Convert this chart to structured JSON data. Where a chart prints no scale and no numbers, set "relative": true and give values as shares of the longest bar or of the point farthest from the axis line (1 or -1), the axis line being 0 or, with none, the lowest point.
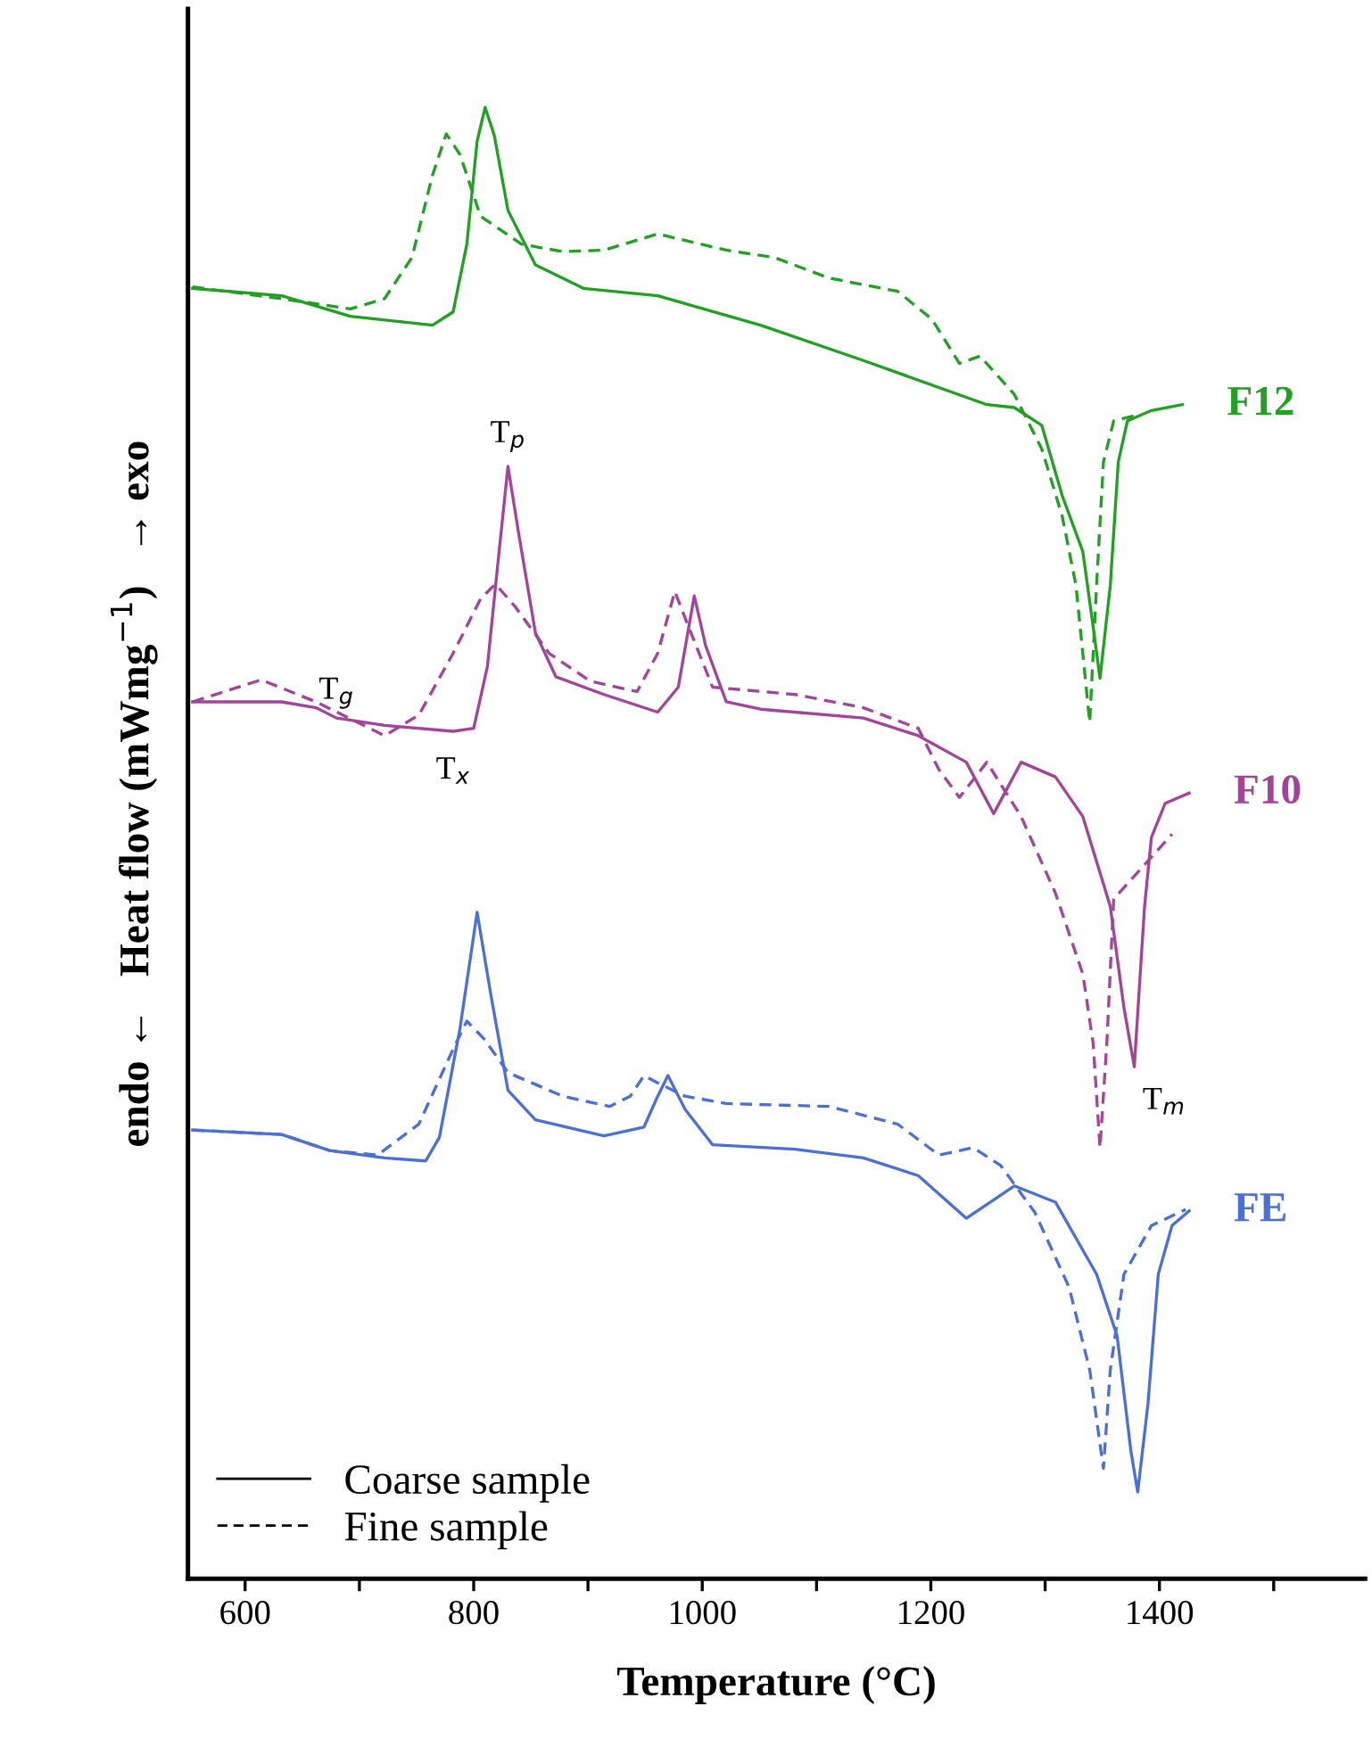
{
  "chart_data": {
    "type": "line",
    "relative": true,
    "xlabel": "Temperature (°C)",
    "ylabel": "endo ←   Heat flow (mWmg$^{−1}$)   → exo",
    "xlim": [
      550,
      1580
    ],
    "xticks": [
      600,
      {
        "value": 700,
        "label": null
      },
      800,
      {
        "value": 900,
        "label": null
      },
      1000,
      {
        "value": 1100,
        "label": null
      },
      1200,
      {
        "value": 1300,
        "label": null
      },
      1400,
      {
        "value": 1500,
        "label": null
      }
    ],
    "grid": false,
    "marker": "none",
    "annotations": [
      "Coarse sample",
      "Fine sample",
      {
        "text": "T$_{p}$",
        "x": 830,
        "y": 0.756
      },
      {
        "text": "T$_{g}$",
        "x": 680,
        "y": 0.585
      },
      {
        "text": "T$_{x}$",
        "x": 782,
        "y": 0.576
      },
      {
        "text": "T$_{m}$",
        "x": 1378,
        "y": 0.348
      },
      {
        "text": "F12",
        "x": 1420,
        "y": 0.798
      },
      {
        "text": "F10",
        "x": 1426,
        "y": 0.534
      },
      {
        "text": "FE",
        "x": 1426,
        "y": 0.25
      }
    ],
    "series": [
      {
        "color": "#22a022",
        "line_style": "solid",
        "x": [
          554,
          632,
          692,
          764,
          782,
          794,
          803,
          810,
          818,
          830,
          854,
          896,
          961,
          1051,
          1141,
          1249,
          1273,
          1297,
          1315,
          1333,
          1342,
          1348,
          1357,
          1364,
          1372,
          1393,
          1420
        ],
        "values": [
          0.877,
          0.872,
          0.858,
          0.852,
          0.861,
          0.907,
          0.977,
          1.0,
          0.981,
          0.93,
          0.893,
          0.877,
          0.872,
          0.852,
          0.828,
          0.798,
          0.796,
          0.784,
          0.736,
          0.698,
          0.647,
          0.612,
          0.675,
          0.759,
          0.787,
          0.794,
          0.798
        ]
      },
      {
        "color": "#22a022",
        "line_style": "dashed",
        "x": [
          554,
          632,
          692,
          722,
          746,
          764,
          776,
          788,
          806,
          842,
          878,
          914,
          961,
          1021,
          1063,
          1111,
          1171,
          1201,
          1225,
          1243,
          1273,
          1297,
          1315,
          1327,
          1339,
          1345,
          1351,
          1360,
          1381
        ],
        "values": [
          0.878,
          0.87,
          0.863,
          0.87,
          0.898,
          0.954,
          0.982,
          0.968,
          0.926,
          0.907,
          0.902,
          0.903,
          0.914,
          0.903,
          0.898,
          0.884,
          0.875,
          0.856,
          0.826,
          0.831,
          0.805,
          0.768,
          0.722,
          0.675,
          0.582,
          0.675,
          0.759,
          0.787,
          0.791
        ]
      },
      {
        "color": "#a3449c",
        "line_style": "solid",
        "x": [
          554,
          632,
          662,
          680,
          722,
          782,
          800,
          812,
          821,
          830,
          839,
          854,
          872,
          914,
          961,
          979,
          993,
          1003,
          1021,
          1051,
          1141,
          1189,
          1231,
          1255,
          1279,
          1309,
          1333,
          1357,
          1369,
          1378,
          1387,
          1393,
          1405,
          1426
        ],
        "values": [
          0.596,
          0.596,
          0.592,
          0.585,
          0.58,
          0.576,
          0.578,
          0.62,
          0.689,
          0.756,
          0.712,
          0.643,
          0.613,
          0.601,
          0.589,
          0.606,
          0.668,
          0.634,
          0.596,
          0.591,
          0.585,
          0.573,
          0.555,
          0.52,
          0.555,
          0.545,
          0.518,
          0.457,
          0.388,
          0.348,
          0.457,
          0.504,
          0.527,
          0.534
        ]
      },
      {
        "color": "#a3449c",
        "line_style": "dashed",
        "x": [
          554,
          614,
          662,
          722,
          752,
          782,
          806,
          819,
          836,
          866,
          902,
          943,
          961,
          976,
          988,
          1009,
          1081,
          1141,
          1189,
          1207,
          1225,
          1249,
          1279,
          1309,
          1333,
          1342,
          1348,
          1354,
          1360,
          1411
        ],
        "values": [
          0.596,
          0.611,
          0.596,
          0.573,
          0.587,
          0.629,
          0.666,
          0.676,
          0.661,
          0.629,
          0.61,
          0.603,
          0.629,
          0.671,
          0.647,
          0.606,
          0.601,
          0.592,
          0.578,
          0.55,
          0.531,
          0.555,
          0.518,
          0.466,
          0.411,
          0.364,
          0.293,
          0.364,
          0.462,
          0.506
        ]
      },
      {
        "color": "#4a70d6",
        "line_style": "solid",
        "x": [
          554,
          632,
          674,
          722,
          758,
          770,
          788,
          803,
          815,
          830,
          854,
          914,
          949,
          961,
          970,
          985,
          1009,
          1081,
          1141,
          1189,
          1231,
          1273,
          1309,
          1345,
          1363,
          1375,
          1381,
          1390,
          1399,
          1411,
          1426
        ],
        "values": [
          0.305,
          0.302,
          0.291,
          0.286,
          0.284,
          0.3,
          0.374,
          0.453,
          0.397,
          0.332,
          0.312,
          0.301,
          0.307,
          0.328,
          0.342,
          0.319,
          0.295,
          0.292,
          0.286,
          0.274,
          0.245,
          0.267,
          0.256,
          0.207,
          0.165,
          0.087,
          0.059,
          0.119,
          0.207,
          0.24,
          0.25
        ]
      },
      {
        "color": "#4a70d6",
        "line_style": "dashed",
        "x": [
          554,
          632,
          674,
          716,
          752,
          782,
          794,
          809,
          830,
          878,
          919,
          937,
          949,
          961,
          985,
          1021,
          1111,
          1171,
          1207,
          1237,
          1261,
          1291,
          1321,
          1339,
          1351,
          1357,
          1369,
          1393,
          1423
        ],
        "values": [
          0.305,
          0.302,
          0.291,
          0.288,
          0.309,
          0.36,
          0.379,
          0.367,
          0.344,
          0.328,
          0.321,
          0.328,
          0.342,
          0.337,
          0.328,
          0.323,
          0.321,
          0.309,
          0.288,
          0.293,
          0.281,
          0.249,
          0.198,
          0.142,
          0.075,
          0.142,
          0.207,
          0.24,
          0.251
        ]
      }
    ]
  }
}
